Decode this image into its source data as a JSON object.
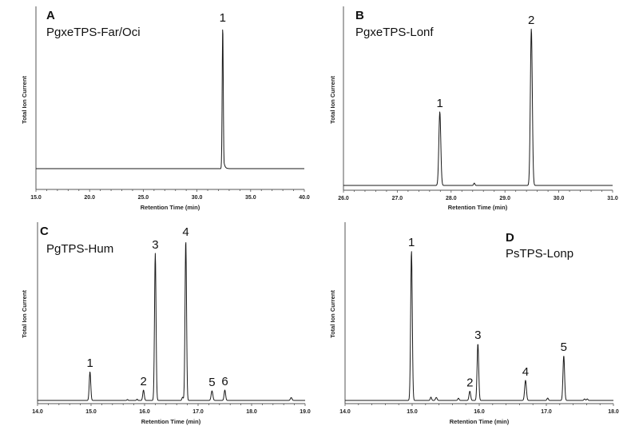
{
  "chart_data": [
    {
      "type": "line",
      "panel": "A",
      "title": "PgxeTPS-Far/Oci",
      "xlabel": "Retention Time (min)",
      "ylabel": "Total Ion Current",
      "xlim": [
        15.0,
        40.0
      ],
      "xticks": [
        "15.0",
        "20.0",
        "25.0",
        "30.0",
        "35.0",
        "40.0"
      ],
      "grid": false,
      "peaks": [
        {
          "label": "1",
          "x": 32.4,
          "height": 1.0,
          "width": 0.05,
          "tail": 0.25
        }
      ],
      "minor_peaks": [],
      "baseline_level": 0.12
    },
    {
      "type": "line",
      "panel": "B",
      "title": "PgxeTPS-Lonf",
      "xlabel": "Retention Time (min)",
      "ylabel": "Total Ion Current",
      "xlim": [
        26.0,
        31.0
      ],
      "xticks": [
        "26.0",
        "27.0",
        "28.0",
        "29.0",
        "30.0",
        "31.0"
      ],
      "grid": false,
      "peaks": [
        {
          "label": "1",
          "x": 27.79,
          "height": 0.47,
          "width": 0.018
        },
        {
          "label": "2",
          "x": 29.49,
          "height": 1.0,
          "width": 0.018
        }
      ],
      "minor_peaks": [
        {
          "x": 28.43,
          "height": 0.015,
          "width": 0.012
        }
      ],
      "baseline_level": 0.0
    },
    {
      "type": "line",
      "panel": "C",
      "title": "PgTPS-Hum",
      "xlabel": "Retention Time (min)",
      "ylabel": "Total Ion Current",
      "xlim": [
        14.0,
        19.0
      ],
      "xticks": [
        "14.0",
        "15.0",
        "16.0",
        "17.0",
        "18.0",
        "19.0"
      ],
      "grid": false,
      "peaks": [
        {
          "label": "1",
          "x": 14.98,
          "height": 0.18,
          "width": 0.014
        },
        {
          "label": "2",
          "x": 15.98,
          "height": 0.065,
          "width": 0.014
        },
        {
          "label": "3",
          "x": 16.2,
          "height": 0.92,
          "width": 0.014
        },
        {
          "label": "4",
          "x": 16.77,
          "height": 1.0,
          "width": 0.014
        },
        {
          "label": "5",
          "x": 17.26,
          "height": 0.06,
          "width": 0.016
        },
        {
          "label": "6",
          "x": 17.5,
          "height": 0.065,
          "width": 0.014
        }
      ],
      "minor_peaks": [
        {
          "x": 15.68,
          "height": 0.006,
          "width": 0.01
        },
        {
          "x": 15.86,
          "height": 0.008,
          "width": 0.01
        },
        {
          "x": 16.71,
          "height": 0.02,
          "width": 0.012
        },
        {
          "x": 18.74,
          "height": 0.018,
          "width": 0.015
        }
      ],
      "baseline_level": 0.0
    },
    {
      "type": "line",
      "panel": "D",
      "title": "PsTPS-Lonp",
      "xlabel": "Retention Time (min)",
      "ylabel": "Total Ion Current",
      "xlim": [
        14.0,
        18.0
      ],
      "xticks": [
        "14.0",
        "15.0",
        "16.0",
        "17.0",
        "18.0"
      ],
      "grid": false,
      "peaks": [
        {
          "label": "1",
          "x": 14.99,
          "height": 1.0,
          "width": 0.012
        },
        {
          "label": "2",
          "x": 15.86,
          "height": 0.062,
          "width": 0.012
        },
        {
          "label": "3",
          "x": 15.98,
          "height": 0.38,
          "width": 0.012
        },
        {
          "label": "4",
          "x": 16.69,
          "height": 0.135,
          "width": 0.013
        },
        {
          "label": "5",
          "x": 17.26,
          "height": 0.3,
          "width": 0.012
        }
      ],
      "minor_peaks": [
        {
          "x": 15.28,
          "height": 0.022,
          "width": 0.01
        },
        {
          "x": 15.36,
          "height": 0.02,
          "width": 0.012
        },
        {
          "x": 15.69,
          "height": 0.015,
          "width": 0.01
        },
        {
          "x": 17.02,
          "height": 0.016,
          "width": 0.01
        },
        {
          "x": 17.57,
          "height": 0.01,
          "width": 0.01
        },
        {
          "x": 17.61,
          "height": 0.01,
          "width": 0.01
        }
      ],
      "baseline_level": 0.0
    }
  ],
  "panels": {
    "A": {
      "letter": "A",
      "name": "PgxeTPS-Far/Oci",
      "xlabel": "Retention Time (min)",
      "ylabel": "Total Ion Current"
    },
    "B": {
      "letter": "B",
      "name": "PgxeTPS-Lonf",
      "xlabel": "Retention Time (min)",
      "ylabel": "Total Ion Current"
    },
    "C": {
      "letter": "C",
      "name": "PgTPS-Hum",
      "xlabel": "Retention Time (min)",
      "ylabel": "Total Ion Current"
    },
    "D": {
      "letter": "D",
      "name": "PsTPS-Lonp",
      "xlabel": "Retention Time (min)",
      "ylabel": "Total Ion Current"
    }
  },
  "colors": {
    "trace": "#1a1a1a",
    "axis": "#555555",
    "background": "#ffffff"
  }
}
